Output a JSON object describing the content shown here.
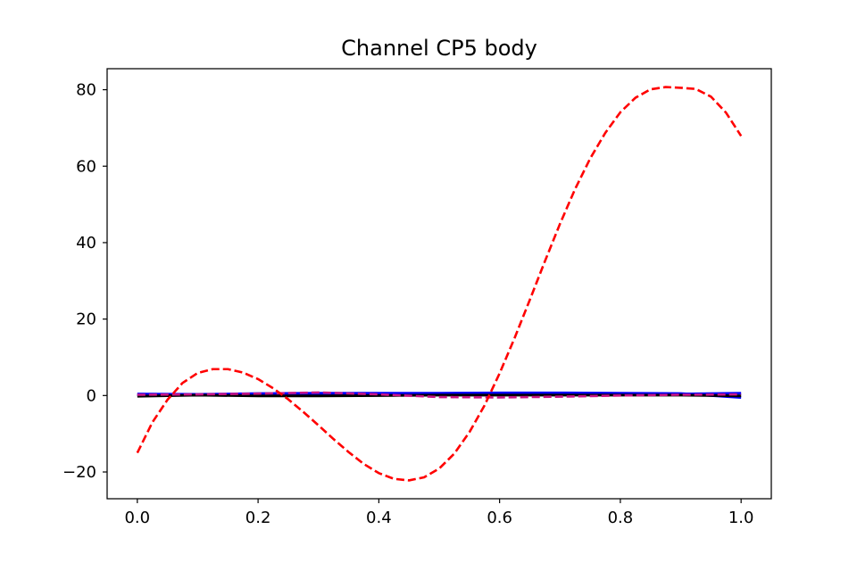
{
  "chart_data": {
    "type": "line",
    "title": "Channel CP5 body",
    "xlabel": "",
    "ylabel": "",
    "xlim": [
      -0.05,
      1.05
    ],
    "ylim": [
      -27,
      85.5
    ],
    "xticks": [
      0.0,
      0.2,
      0.4,
      0.6,
      0.8,
      1.0
    ],
    "xtick_labels": [
      "0.0",
      "0.2",
      "0.4",
      "0.6",
      "0.8",
      "1.0"
    ],
    "yticks": [
      -20,
      0,
      20,
      40,
      60,
      80
    ],
    "ytick_labels": [
      "−20",
      "0",
      "20",
      "40",
      "60",
      "80"
    ],
    "grid": false,
    "series": [
      {
        "color": "#0000ff",
        "style": "solid",
        "x": [
          0.0,
          0.1,
          0.2,
          0.3,
          0.4,
          0.5,
          0.6,
          0.7,
          0.8,
          0.9,
          1.0
        ],
        "y": [
          0.4,
          0.3,
          0.5,
          0.6,
          0.6,
          0.6,
          0.7,
          0.7,
          0.6,
          0.5,
          -0.5
        ]
      },
      {
        "color": "#0000ff",
        "style": "solid",
        "x": [
          0.0,
          0.1,
          0.2,
          0.3,
          0.4,
          0.5,
          0.6,
          0.7,
          0.8,
          0.9,
          1.0
        ],
        "y": [
          0.2,
          0.2,
          0.1,
          0.2,
          0.3,
          0.3,
          0.4,
          0.4,
          0.4,
          0.4,
          0.6
        ]
      },
      {
        "color": "#000000",
        "style": "solid",
        "x": [
          0.0,
          0.1,
          0.2,
          0.3,
          0.4,
          0.5,
          0.6,
          0.7,
          0.8,
          0.9,
          1.0
        ],
        "y": [
          -0.2,
          0.1,
          -0.1,
          -0.1,
          0.0,
          0.1,
          0.1,
          0.1,
          0.1,
          0.1,
          -0.1
        ]
      },
      {
        "color": "#c71585",
        "style": "dashed",
        "x": [
          0.0,
          0.1,
          0.2,
          0.3,
          0.4,
          0.5,
          0.6,
          0.7,
          0.8,
          0.9,
          1.0
        ],
        "y": [
          0.2,
          0.3,
          0.5,
          0.8,
          0.3,
          -0.4,
          -0.5,
          -0.3,
          0.0,
          0.2,
          0.3
        ]
      },
      {
        "color": "#ff0000",
        "style": "dashed",
        "x": [
          0.0,
          0.025,
          0.05,
          0.075,
          0.1,
          0.125,
          0.15,
          0.175,
          0.2,
          0.225,
          0.25,
          0.275,
          0.3,
          0.325,
          0.35,
          0.375,
          0.4,
          0.425,
          0.45,
          0.475,
          0.5,
          0.525,
          0.55,
          0.575,
          0.6,
          0.625,
          0.65,
          0.675,
          0.7,
          0.725,
          0.75,
          0.775,
          0.8,
          0.825,
          0.85,
          0.875,
          0.9,
          0.925,
          0.95,
          0.975,
          1.0
        ],
        "y": [
          -15.0,
          -7.0,
          -1.1,
          3.3,
          5.9,
          6.9,
          6.9,
          6.0,
          4.3,
          1.9,
          -1.0,
          -4.3,
          -7.8,
          -11.4,
          -14.8,
          -17.9,
          -20.3,
          -21.8,
          -22.2,
          -21.4,
          -19.1,
          -15.2,
          -9.6,
          -2.6,
          5.8,
          15.1,
          25.0,
          35.1,
          44.9,
          54.0,
          62.0,
          68.7,
          74.1,
          77.9,
          80.1,
          80.7,
          80.5,
          80.2,
          78.2,
          74.0,
          67.9
        ]
      }
    ]
  }
}
